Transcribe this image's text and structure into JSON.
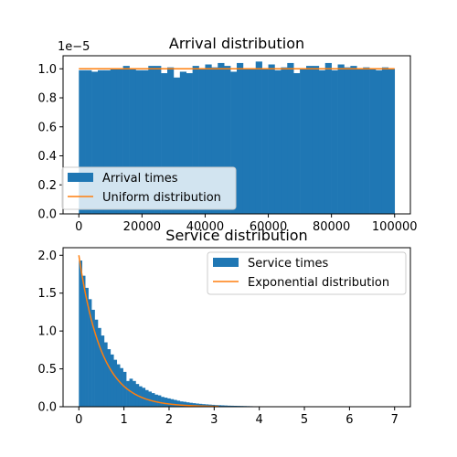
{
  "chart_data": [
    {
      "type": "bar",
      "title": "Arrival distribution",
      "xlabel": "",
      "ylabel": "",
      "offset_text": "1e−5",
      "xlim": [
        -5000,
        105000
      ],
      "ylim": [
        0,
        1.09
      ],
      "xticks": [
        0,
        20000,
        40000,
        60000,
        80000,
        100000
      ],
      "xtick_labels": [
        "0",
        "20000",
        "40000",
        "60000",
        "80000",
        "100000"
      ],
      "yticks": [
        0,
        0.2,
        0.4,
        0.6,
        0.8,
        1.0
      ],
      "ytick_labels": [
        "0.0",
        "0.2",
        "0.4",
        "0.6",
        "0.8",
        "1.0"
      ],
      "grid": false,
      "legend_position": "lower-left",
      "hist": {
        "name": "Arrival times",
        "color": "#1f77b4",
        "bin_start": 0,
        "bin_width": 2000,
        "values": [
          0.99,
          0.99,
          0.98,
          0.99,
          0.99,
          1.0,
          1.0,
          1.02,
          1.0,
          0.99,
          0.99,
          1.02,
          1.02,
          0.97,
          1.01,
          0.94,
          0.98,
          0.97,
          1.02,
          1.0,
          1.03,
          1.01,
          1.04,
          1.02,
          0.98,
          1.04,
          1.0,
          1.0,
          1.05,
          1.0,
          1.03,
          0.99,
          1.01,
          1.04,
          0.97,
          1.0,
          1.02,
          1.02,
          0.99,
          1.04,
          0.99,
          1.03,
          1.01,
          1.02,
          1.0,
          1.01,
          1.0,
          0.99,
          1.01,
          1.0
        ]
      },
      "line": {
        "name": "Uniform distribution",
        "color": "#ff7f0e",
        "x": [
          0,
          100000
        ],
        "y": [
          1.0,
          1.0
        ]
      }
    },
    {
      "type": "bar",
      "title": "Service distribution",
      "xlabel": "",
      "ylabel": "",
      "xlim": [
        -0.35,
        7.35
      ],
      "ylim": [
        0,
        2.1
      ],
      "xticks": [
        0,
        1,
        2,
        3,
        4,
        5,
        6,
        7
      ],
      "xtick_labels": [
        "0",
        "1",
        "2",
        "3",
        "4",
        "5",
        "6",
        "7"
      ],
      "yticks": [
        0,
        0.5,
        1.0,
        1.5,
        2.0
      ],
      "ytick_labels": [
        "0.0",
        "0.5",
        "1.0",
        "1.5",
        "2.0"
      ],
      "grid": false,
      "legend_position": "upper-right",
      "hist": {
        "name": "Service times",
        "color": "#1f77b4",
        "bin_start": 0,
        "bin_width": 0.07,
        "values": [
          1.93,
          1.73,
          1.57,
          1.42,
          1.28,
          1.15,
          1.04,
          0.94,
          0.85,
          0.76,
          0.69,
          0.62,
          0.56,
          0.51,
          0.46,
          0.34,
          0.37,
          0.34,
          0.3,
          0.27,
          0.25,
          0.22,
          0.2,
          0.18,
          0.16,
          0.15,
          0.13,
          0.12,
          0.11,
          0.1,
          0.09,
          0.08,
          0.07,
          0.065,
          0.058,
          0.052,
          0.047,
          0.042,
          0.038,
          0.034,
          0.031,
          0.028,
          0.025,
          0.022,
          0.02,
          0.018,
          0.016,
          0.014,
          0.013,
          0.012,
          0.011,
          0.01,
          0.009,
          0.008,
          0.007,
          0.006,
          0.006,
          0.005,
          0.005,
          0.004,
          0.004,
          0.003,
          0.003,
          0.003,
          0.002,
          0.002,
          0.002,
          0.002,
          0.001,
          0.001,
          0.001,
          0.001,
          0.001,
          0.001,
          0.001,
          0.001,
          0.001,
          0.001,
          0.001,
          0.001,
          0.001,
          0.001,
          0.001,
          0.001,
          0.001,
          0.001,
          0.001,
          0.001,
          0.001,
          0.001,
          0.001,
          0.001,
          0.001,
          0.001,
          0.001,
          0.001,
          0.001,
          0.001,
          0.001,
          0.001
        ]
      },
      "line": {
        "name": "Exponential distribution",
        "color": "#ff7f0e",
        "function": "2*exp(-2x)",
        "x_range": [
          0,
          3.1
        ]
      }
    }
  ]
}
